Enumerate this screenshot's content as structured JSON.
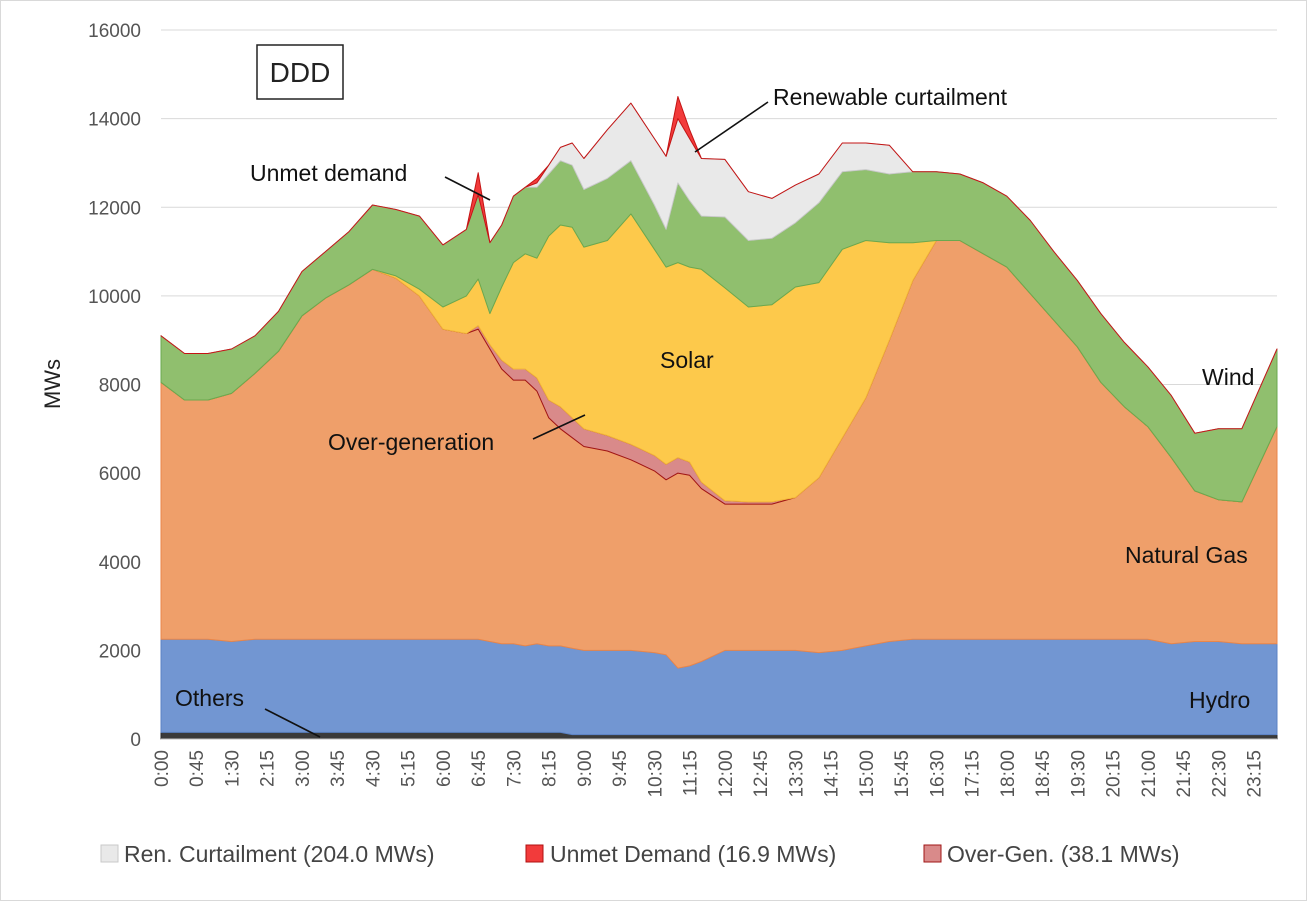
{
  "chart_data": {
    "type": "area",
    "title_box": "DDD",
    "ylabel": "MWs",
    "xlabel": "",
    "ylim": [
      0,
      16000
    ],
    "yticks": [
      "0",
      "2000",
      "4000",
      "6000",
      "8000",
      "10000",
      "12000",
      "14000",
      "16000"
    ],
    "xtick_labels": [
      "0:00",
      "0:45",
      "1:30",
      "2:15",
      "3:00",
      "3:45",
      "4:30",
      "5:15",
      "6:00",
      "6:45",
      "7:30",
      "8:15",
      "9:00",
      "9:45",
      "10:30",
      "11:15",
      "12:00",
      "12:45",
      "13:30",
      "14:15",
      "15:00",
      "15:45",
      "16:30",
      "17:15",
      "18:00",
      "18:45",
      "19:30",
      "20:15",
      "21:00",
      "21:45",
      "22:30",
      "23:15"
    ],
    "grid": "horizontal",
    "x": [
      0,
      0.5,
      1,
      1.5,
      2,
      2.5,
      3,
      3.5,
      4,
      4.5,
      5,
      5.5,
      6,
      6.5,
      6.75,
      7,
      7.25,
      7.5,
      7.75,
      8,
      8.25,
      8.5,
      8.75,
      9,
      9.5,
      10,
      10.5,
      10.75,
      11,
      11.25,
      11.5,
      12,
      12.5,
      13,
      13.5,
      14,
      14.5,
      15,
      15.5,
      16,
      16.5,
      17,
      17.5,
      18,
      18.5,
      19,
      19.5,
      20,
      20.5,
      21,
      21.5,
      22,
      22.5,
      23,
      23.75
    ],
    "series": [
      {
        "name": "Others",
        "color": "#3a3a3a",
        "values": [
          150,
          150,
          150,
          150,
          150,
          150,
          150,
          150,
          150,
          150,
          150,
          150,
          150,
          150,
          150,
          150,
          150,
          150,
          150,
          150,
          150,
          150,
          100,
          100,
          100,
          100,
          100,
          100,
          100,
          100,
          100,
          100,
          100,
          100,
          100,
          100,
          100,
          100,
          100,
          100,
          100,
          100,
          100,
          100,
          100,
          100,
          100,
          100,
          100,
          100,
          100,
          100,
          100,
          100,
          100
        ]
      },
      {
        "name": "Hydro",
        "color": "#7296d2",
        "values": [
          2100,
          2100,
          2100,
          2050,
          2100,
          2100,
          2100,
          2100,
          2100,
          2100,
          2100,
          2100,
          2100,
          2100,
          2100,
          2050,
          2000,
          2000,
          1950,
          2000,
          1950,
          1950,
          1950,
          1900,
          1900,
          1900,
          1850,
          1800,
          1500,
          1550,
          1650,
          1900,
          1900,
          1900,
          1900,
          1850,
          1900,
          2000,
          2100,
          2150,
          2150,
          2150,
          2150,
          2150,
          2150,
          2150,
          2150,
          2150,
          2150,
          2150,
          2050,
          2100,
          2100,
          2050,
          2050
        ]
      },
      {
        "name": "Natural Gas",
        "color": "#ef9f6a",
        "values": [
          5800,
          5400,
          5400,
          5600,
          6000,
          6500,
          7300,
          7700,
          8000,
          8350,
          8150,
          7750,
          7000,
          6900,
          7000,
          6600,
          6200,
          5950,
          6000,
          5700,
          5150,
          4900,
          4750,
          4600,
          4500,
          4300,
          4100,
          3950,
          4400,
          4300,
          3900,
          3300,
          3300,
          3300,
          3450,
          3950,
          4800,
          5600,
          6800,
          8100,
          9000,
          9000,
          8700,
          8400,
          7800,
          7200,
          6600,
          5800,
          5250,
          4800,
          4200,
          3400,
          3200,
          3200,
          4900
        ]
      },
      {
        "name": "Over-Gen.",
        "color": "#d98a8a",
        "values": [
          0,
          0,
          0,
          0,
          0,
          0,
          0,
          0,
          0,
          0,
          0,
          0,
          0,
          0,
          80,
          100,
          200,
          250,
          250,
          300,
          400,
          500,
          450,
          400,
          350,
          350,
          350,
          350,
          350,
          300,
          150,
          80,
          50,
          50,
          0,
          0,
          0,
          0,
          0,
          0,
          0,
          0,
          0,
          0,
          0,
          0,
          0,
          0,
          0,
          0,
          0,
          0,
          0,
          0,
          0
        ]
      },
      {
        "name": "Solar",
        "color": "#fdc94b",
        "values": [
          0,
          0,
          0,
          0,
          0,
          0,
          0,
          0,
          0,
          0,
          50,
          150,
          500,
          850,
          1050,
          700,
          1650,
          2400,
          2600,
          2700,
          3700,
          4100,
          4300,
          4100,
          4400,
          5200,
          4650,
          4450,
          4400,
          4400,
          4800,
          4800,
          4400,
          4450,
          4750,
          4400,
          4250,
          3550,
          2200,
          850,
          0,
          0,
          0,
          0,
          0,
          0,
          0,
          0,
          0,
          0,
          0,
          0,
          0,
          0,
          0
        ]
      },
      {
        "name": "Wind",
        "color": "#90bf6e",
        "values": [
          1050,
          1050,
          1050,
          1000,
          850,
          900,
          1000,
          1050,
          1200,
          1450,
          1500,
          1650,
          1400,
          1500,
          1900,
          1600,
          1400,
          1500,
          1500,
          1600,
          1400,
          1450,
          1400,
          1300,
          1400,
          1200,
          1000,
          850,
          1800,
          1500,
          1200,
          1600,
          1500,
          1500,
          1450,
          1800,
          1750,
          1600,
          1550,
          1600,
          1550,
          1500,
          1600,
          1600,
          1650,
          1550,
          1500,
          1550,
          1450,
          1350,
          1400,
          1300,
          1600,
          1650,
          1750
        ]
      },
      {
        "name": "Ren. Curtailment",
        "color": "#e9e9e9",
        "values": [
          0,
          0,
          0,
          0,
          0,
          0,
          0,
          0,
          0,
          0,
          0,
          0,
          0,
          0,
          0,
          0,
          0,
          0,
          0,
          100,
          200,
          300,
          500,
          700,
          1100,
          1300,
          1500,
          1650,
          1450,
          1400,
          1300,
          1300,
          1100,
          900,
          850,
          650,
          650,
          600,
          650,
          0,
          0,
          0,
          0,
          0,
          0,
          0,
          0,
          0,
          0,
          0,
          0,
          0,
          0,
          0,
          0
        ]
      },
      {
        "name": "Unmet Demand",
        "color": "#f23b3b",
        "values": [
          0,
          0,
          0,
          0,
          0,
          0,
          0,
          0,
          0,
          0,
          0,
          0,
          0,
          0,
          500,
          0,
          0,
          0,
          0,
          100,
          0,
          0,
          0,
          0,
          0,
          0,
          0,
          0,
          500,
          200,
          0,
          0,
          0,
          0,
          0,
          0,
          0,
          0,
          0,
          0,
          0,
          0,
          0,
          0,
          0,
          0,
          0,
          0,
          0,
          0,
          0,
          0,
          0,
          0,
          0
        ]
      }
    ],
    "annotations": {
      "renewable_curtailment": "Renewable curtailment",
      "unmet_demand": "Unmet demand",
      "solar": "Solar",
      "wind": "Wind",
      "over_generation": "Over-generation",
      "natural_gas": "Natural Gas",
      "others": "Others",
      "hydro": "Hydro"
    },
    "legend_position": "bottom",
    "legend": [
      {
        "label": "Ren. Curtailment (204.0 MWs)",
        "color": "#e9e9e9",
        "border": "#c9c9c9"
      },
      {
        "label": "Unmet Demand (16.9 MWs)",
        "color": "#f23b3b",
        "border": "#b01010"
      },
      {
        "label": "Over-Gen. (38.1 MWs)",
        "color": "#d98a8a",
        "border": "#a01515"
      }
    ]
  }
}
